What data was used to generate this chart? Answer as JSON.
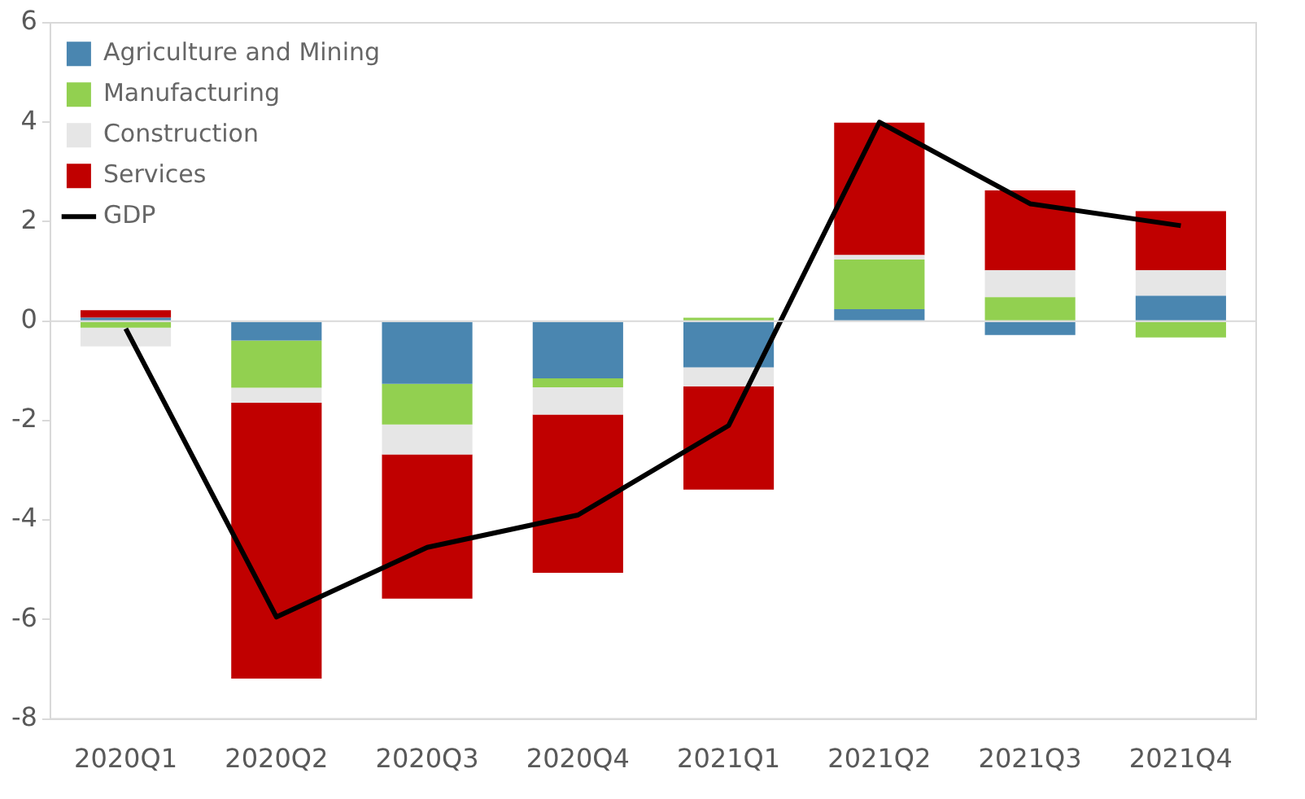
{
  "chart_data": {
    "type": "bar",
    "stacked": true,
    "categories": [
      "2020Q1",
      "2020Q2",
      "2020Q3",
      "2020Q4",
      "2021Q1",
      "2021Q2",
      "2021Q3",
      "2021Q4"
    ],
    "ylim": [
      -8,
      6
    ],
    "yticks": [
      -8,
      -6,
      -4,
      -2,
      0,
      2,
      4,
      6
    ],
    "grid": false,
    "legend": "top left",
    "marker": "none",
    "ref_lines": [
      {
        "axis": "y",
        "value": 0,
        "color": "#d9d9d9"
      }
    ],
    "series": [
      {
        "name": "Agriculture and Mining",
        "color": "#4a86b0",
        "values": [
          0.07,
          -0.39,
          -1.26,
          -1.15,
          -0.93,
          0.24,
          -0.28,
          0.51
        ]
      },
      {
        "name": "Manufacturing",
        "color": "#92d050",
        "values": [
          -0.13,
          -0.95,
          -0.82,
          -0.18,
          0.07,
          1.0,
          0.48,
          -0.33
        ]
      },
      {
        "name": "Construction",
        "color": "#e6e6e6",
        "values": [
          -0.38,
          -0.3,
          -0.6,
          -0.55,
          -0.38,
          0.09,
          0.54,
          0.51
        ]
      },
      {
        "name": "Services",
        "color": "#c00000",
        "values": [
          0.15,
          -5.55,
          -2.9,
          -3.18,
          -2.08,
          2.66,
          1.61,
          1.19
        ]
      },
      {
        "name": "GDP",
        "type": "line",
        "color": "#000000",
        "values": [
          -0.15,
          -5.95,
          -4.55,
          -3.9,
          -2.1,
          4.0,
          2.36,
          1.92
        ]
      }
    ]
  }
}
